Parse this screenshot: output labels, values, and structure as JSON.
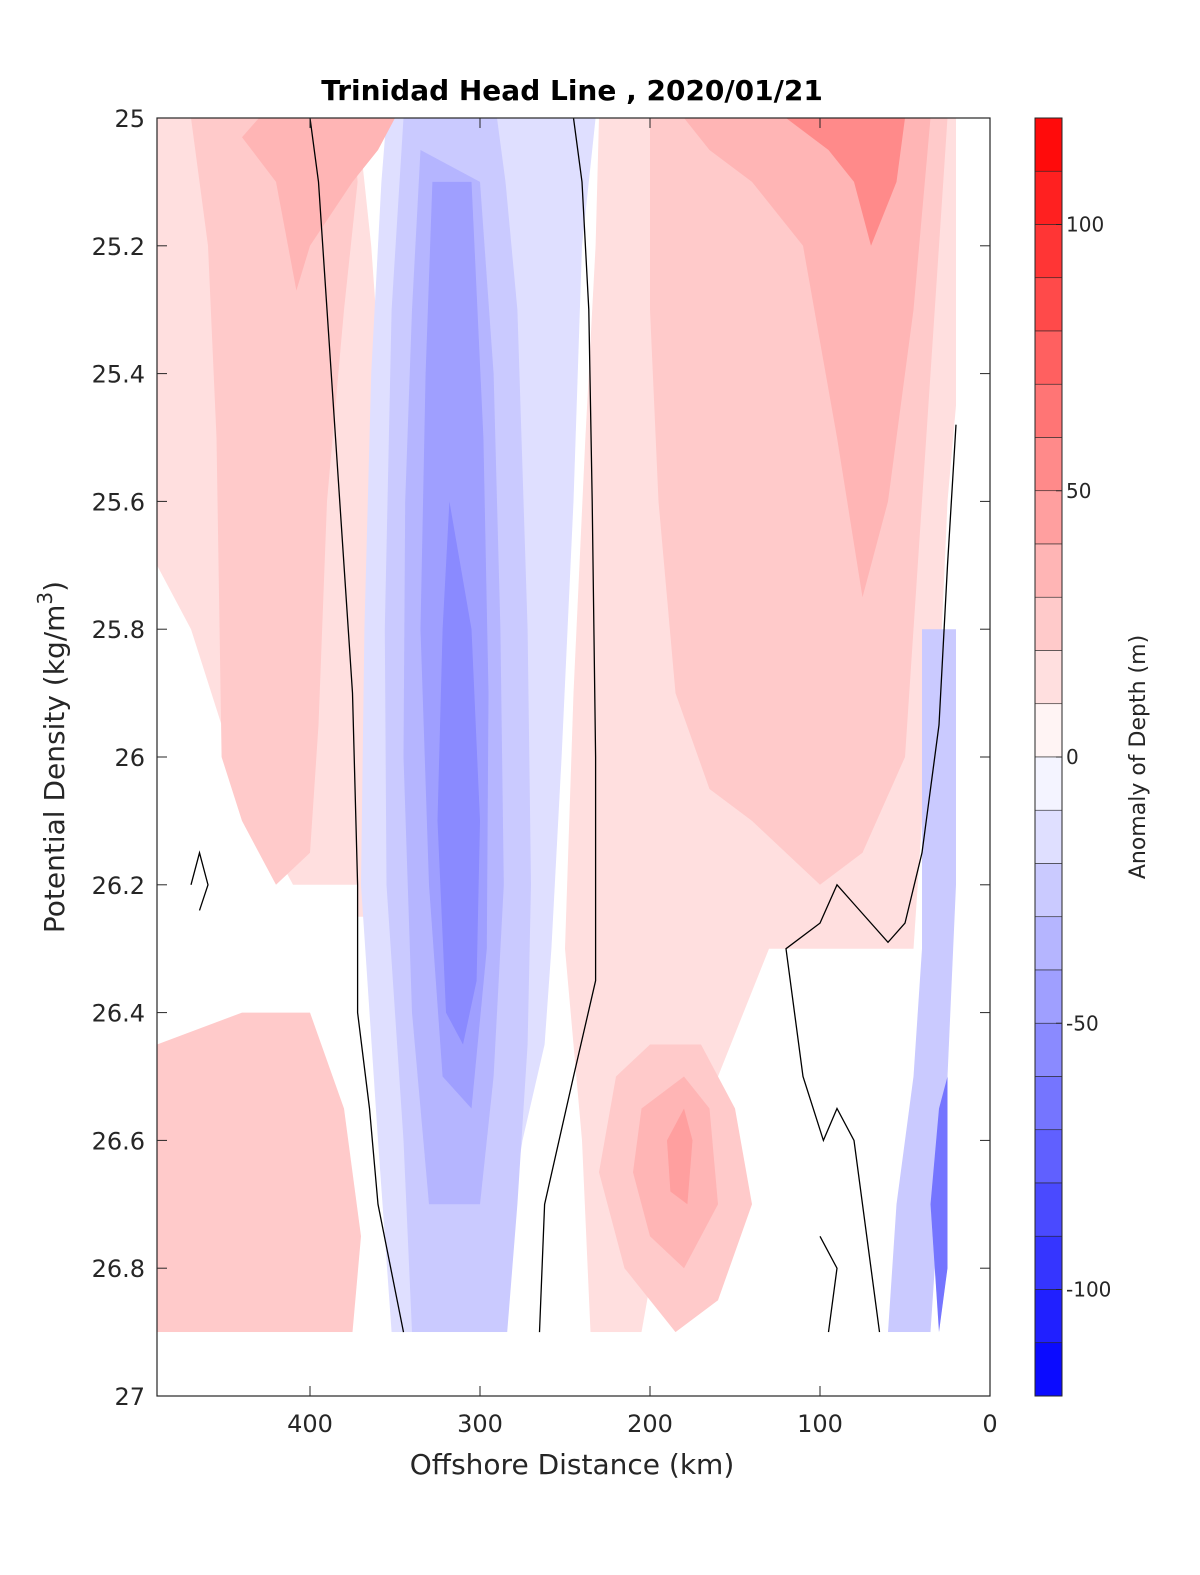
{
  "chart_data": {
    "type": "heatmap",
    "subtype": "filled-contour",
    "title": "Trinidad Head Line , 2020/01/21",
    "xlabel": "Offshore Distance (km)",
    "ylabel": "Potential Density (kg/m",
    "ylabel_sup": "3",
    "ylabel_close": ")",
    "xlim": [
      490,
      0
    ],
    "ylim": [
      25,
      27
    ],
    "x_reversed": true,
    "y_reversed": true,
    "grid": false,
    "xticks": [
      {
        "value": 400,
        "label": "400"
      },
      {
        "value": 300,
        "label": "300"
      },
      {
        "value": 200,
        "label": "200"
      },
      {
        "value": 100,
        "label": "100"
      },
      {
        "value": 0,
        "label": "0"
      }
    ],
    "yticks": [
      {
        "value": 25,
        "label": "25"
      },
      {
        "value": 25.2,
        "label": "25.2"
      },
      {
        "value": 25.4,
        "label": "25.4"
      },
      {
        "value": 25.6,
        "label": "25.6"
      },
      {
        "value": 25.8,
        "label": "25.8"
      },
      {
        "value": 26,
        "label": "26"
      },
      {
        "value": 26.2,
        "label": "26.2"
      },
      {
        "value": 26.4,
        "label": "26.4"
      },
      {
        "value": 26.6,
        "label": "26.6"
      },
      {
        "value": 26.8,
        "label": "26.8"
      },
      {
        "value": 27,
        "label": "27"
      }
    ],
    "colorbar": {
      "label": "Anomaly of Depth (m)",
      "range": [
        -120,
        120
      ],
      "level_step": 10,
      "ticks": [
        {
          "value": 100,
          "label": "100"
        },
        {
          "value": 50,
          "label": "50"
        },
        {
          "value": 0,
          "label": "0"
        },
        {
          "value": -50,
          "label": "-50"
        },
        {
          "value": -100,
          "label": "-100"
        }
      ],
      "colormap": "blue-white-red",
      "negative_color": "#0000ff",
      "positive_color": "#ff0000",
      "zero_color": "#ffffff"
    },
    "data_extent": {
      "x_min": 20,
      "x_max": 490,
      "y_min": 25,
      "y_max": 26.9
    },
    "regions": [
      {
        "name": "offshore-pos-upper",
        "level": 10,
        "points": [
          [
            490,
            25
          ],
          [
            372,
            25
          ],
          [
            364,
            25.2
          ],
          [
            356,
            25.5
          ],
          [
            350,
            25.9
          ],
          [
            350,
            26.25
          ],
          [
            372,
            26.25
          ],
          [
            372,
            26.2
          ],
          [
            380,
            25.8
          ],
          [
            390,
            25.4
          ],
          [
            396,
            25.1
          ],
          [
            400,
            25
          ],
          [
            490,
            25
          ],
          [
            490,
            26.25
          ]
        ]
      },
      {
        "name": "offshore-pos-upper-core",
        "level": 10,
        "points": [
          [
            490,
            25
          ],
          [
            380,
            25
          ],
          [
            366,
            25.3
          ],
          [
            360,
            25.7
          ],
          [
            355,
            26
          ],
          [
            350,
            26.2
          ],
          [
            410,
            26.2
          ],
          [
            440,
            26.05
          ],
          [
            470,
            25.8
          ],
          [
            490,
            25.7
          ]
        ]
      },
      {
        "name": "offshore-pos-20",
        "level": 20,
        "points": [
          [
            490,
            25
          ],
          [
            470,
            25
          ],
          [
            465,
            25.1
          ],
          [
            460,
            25.2
          ],
          [
            455,
            25.5
          ],
          [
            452,
            26
          ],
          [
            440,
            26.1
          ],
          [
            420,
            26.2
          ],
          [
            400,
            26.15
          ],
          [
            395,
            25.95
          ],
          [
            390,
            25.6
          ],
          [
            380,
            25.3
          ],
          [
            372,
            25.1
          ],
          [
            375,
            25
          ],
          [
            490,
            25
          ]
        ]
      },
      {
        "name": "offshore-pos-30",
        "level": 30,
        "points": [
          [
            430,
            25
          ],
          [
            350,
            25
          ],
          [
            360,
            25.05
          ],
          [
            375,
            25.1
          ],
          [
            400,
            25.2
          ],
          [
            408,
            25.27
          ],
          [
            420,
            25.1
          ],
          [
            440,
            25.03
          ]
        ]
      },
      {
        "name": "offshore-neg-10-band",
        "level": -10,
        "points": [
          [
            355,
            25
          ],
          [
            232,
            25
          ],
          [
            240,
            25.2
          ],
          [
            245,
            25.6
          ],
          [
            252,
            26
          ],
          [
            258,
            26.3
          ],
          [
            262,
            26.45
          ],
          [
            275,
            26.6
          ],
          [
            284,
            26.75
          ],
          [
            288,
            26.9
          ],
          [
            352,
            26.9
          ],
          [
            360,
            26.6
          ],
          [
            370,
            26.2
          ],
          [
            368,
            25.8
          ],
          [
            364,
            25.4
          ],
          [
            358,
            25.1
          ]
        ]
      },
      {
        "name": "offshore-neg-20-band",
        "level": -20,
        "points": [
          [
            345,
            25
          ],
          [
            290,
            25
          ],
          [
            285,
            25.1
          ],
          [
            278,
            25.3
          ],
          [
            272,
            25.8
          ],
          [
            270,
            26.2
          ],
          [
            272,
            26.45
          ],
          [
            278,
            26.7
          ],
          [
            284,
            26.9
          ],
          [
            340,
            26.9
          ],
          [
            345,
            26.6
          ],
          [
            355,
            26.2
          ],
          [
            356,
            25.8
          ],
          [
            352,
            25.3
          ]
        ]
      },
      {
        "name": "offshore-neg-30-band",
        "level": -30,
        "points": [
          [
            335,
            25.05
          ],
          [
            300,
            25.1
          ],
          [
            292,
            25.4
          ],
          [
            288,
            25.8
          ],
          [
            286,
            26.2
          ],
          [
            292,
            26.5
          ],
          [
            300,
            26.7
          ],
          [
            330,
            26.7
          ],
          [
            340,
            26.4
          ],
          [
            345,
            26
          ],
          [
            344,
            25.6
          ],
          [
            340,
            25.3
          ]
        ]
      },
      {
        "name": "offshore-neg-40-core",
        "level": -40,
        "points": [
          [
            328,
            25.1
          ],
          [
            305,
            25.1
          ],
          [
            298,
            25.5
          ],
          [
            295,
            25.9
          ],
          [
            296,
            26.3
          ],
          [
            305,
            26.55
          ],
          [
            322,
            26.5
          ],
          [
            330,
            26.2
          ],
          [
            335,
            25.8
          ],
          [
            332,
            25.4
          ]
        ]
      },
      {
        "name": "offshore-neg-50-core",
        "level": -50,
        "points": [
          [
            318,
            25.6
          ],
          [
            305,
            25.8
          ],
          [
            300,
            26.1
          ],
          [
            302,
            26.35
          ],
          [
            310,
            26.45
          ],
          [
            320,
            26.4
          ],
          [
            325,
            26.1
          ],
          [
            322,
            25.8
          ]
        ]
      },
      {
        "name": "inshore-pos-10-band",
        "level": 10,
        "points": [
          [
            230,
            25
          ],
          [
            20,
            25
          ],
          [
            20,
            25.45
          ],
          [
            25,
            25.6
          ],
          [
            30,
            25.9
          ],
          [
            40,
            26.1
          ],
          [
            45,
            26.3
          ],
          [
            130,
            26.3
          ],
          [
            175,
            26.6
          ],
          [
            195,
            26.75
          ],
          [
            205,
            26.9
          ],
          [
            235,
            26.9
          ],
          [
            240,
            26.6
          ],
          [
            250,
            26.3
          ],
          [
            245,
            25.9
          ],
          [
            238,
            25.5
          ],
          [
            232,
            25.2
          ]
        ]
      },
      {
        "name": "inshore-pos-20-band",
        "level": 20,
        "points": [
          [
            200,
            25
          ],
          [
            25,
            25
          ],
          [
            30,
            25.2
          ],
          [
            40,
            25.6
          ],
          [
            50,
            26
          ],
          [
            75,
            26.15
          ],
          [
            100,
            26.2
          ],
          [
            140,
            26.1
          ],
          [
            165,
            26.05
          ],
          [
            185,
            25.9
          ],
          [
            195,
            25.6
          ],
          [
            200,
            25.3
          ]
        ]
      },
      {
        "name": "inshore-pos-30-band",
        "level": 30,
        "points": [
          [
            180,
            25
          ],
          [
            35,
            25
          ],
          [
            45,
            25.3
          ],
          [
            60,
            25.6
          ],
          [
            75,
            25.75
          ],
          [
            90,
            25.5
          ],
          [
            110,
            25.2
          ],
          [
            140,
            25.1
          ],
          [
            165,
            25.05
          ]
        ]
      },
      {
        "name": "inshore-pos-50-core",
        "level": 50,
        "points": [
          [
            120,
            25
          ],
          [
            50,
            25
          ],
          [
            55,
            25.1
          ],
          [
            70,
            25.2
          ],
          [
            80,
            25.1
          ],
          [
            95,
            25.05
          ]
        ]
      },
      {
        "name": "inshore-pos-20-lower",
        "level": 20,
        "points": [
          [
            220,
            26.5
          ],
          [
            200,
            26.45
          ],
          [
            170,
            26.45
          ],
          [
            150,
            26.55
          ],
          [
            140,
            26.7
          ],
          [
            160,
            26.85
          ],
          [
            185,
            26.9
          ],
          [
            215,
            26.8
          ],
          [
            230,
            26.65
          ]
        ]
      },
      {
        "name": "inshore-pos-30-lower",
        "level": 30,
        "points": [
          [
            205,
            26.55
          ],
          [
            180,
            26.5
          ],
          [
            165,
            26.55
          ],
          [
            160,
            26.7
          ],
          [
            180,
            26.8
          ],
          [
            200,
            26.75
          ],
          [
            210,
            26.65
          ]
        ]
      },
      {
        "name": "inshore-pos-40-core",
        "level": 40,
        "points": [
          [
            190,
            26.6
          ],
          [
            180,
            26.55
          ],
          [
            175,
            26.6
          ],
          [
            178,
            26.7
          ],
          [
            188,
            26.68
          ]
        ]
      },
      {
        "name": "coastal-neg-band",
        "level": -20,
        "points": [
          [
            40,
            25.8
          ],
          [
            20,
            25.8
          ],
          [
            20,
            26.2
          ],
          [
            25,
            26.5
          ],
          [
            30,
            26.7
          ],
          [
            35,
            26.9
          ],
          [
            60,
            26.9
          ],
          [
            55,
            26.7
          ],
          [
            45,
            26.5
          ],
          [
            40,
            26.3
          ]
        ]
      },
      {
        "name": "coastal-neg-core",
        "level": -60,
        "points": [
          [
            30,
            26.55
          ],
          [
            25,
            26.5
          ],
          [
            25,
            26.8
          ],
          [
            30,
            26.9
          ],
          [
            35,
            26.7
          ]
        ]
      },
      {
        "name": "offshore-pos-lower",
        "level": 20,
        "points": [
          [
            490,
            26.45
          ],
          [
            440,
            26.4
          ],
          [
            400,
            26.4
          ],
          [
            380,
            26.55
          ],
          [
            370,
            26.75
          ],
          [
            375,
            26.9
          ],
          [
            490,
            26.9
          ]
        ]
      }
    ],
    "contours_zero": [
      {
        "name": "zero-offshore-west",
        "points": [
          [
            400,
            25
          ],
          [
            395,
            25.1
          ],
          [
            385,
            25.5
          ],
          [
            375,
            25.9
          ],
          [
            372,
            26.2
          ],
          [
            372,
            26.4
          ],
          [
            365,
            26.55
          ],
          [
            360,
            26.7
          ],
          [
            345,
            26.9
          ]
        ]
      },
      {
        "name": "zero-offshore-east",
        "points": [
          [
            245,
            25
          ],
          [
            240,
            25.1
          ],
          [
            236,
            25.3
          ],
          [
            234,
            25.6
          ],
          [
            232,
            26
          ],
          [
            232,
            26.35
          ],
          [
            245,
            26.5
          ],
          [
            262,
            26.7
          ],
          [
            265,
            26.9
          ]
        ]
      },
      {
        "name": "zero-coastal",
        "points": [
          [
            20,
            25.48
          ],
          [
            25,
            25.7
          ],
          [
            30,
            25.95
          ],
          [
            40,
            26.15
          ],
          [
            50,
            26.26
          ],
          [
            60,
            26.29
          ],
          [
            80,
            26.23
          ],
          [
            90,
            26.2
          ],
          [
            100,
            26.26
          ],
          [
            120,
            26.3
          ],
          [
            110,
            26.5
          ],
          [
            98,
            26.6
          ],
          [
            90,
            26.55
          ],
          [
            80,
            26.6
          ],
          [
            65,
            26.9
          ]
        ]
      },
      {
        "name": "zero-small-west",
        "points": [
          [
            470,
            26.2
          ],
          [
            465,
            26.15
          ],
          [
            460,
            26.2
          ],
          [
            465,
            26.24
          ]
        ]
      },
      {
        "name": "zero-small-east",
        "points": [
          [
            100,
            26.75
          ],
          [
            90,
            26.8
          ],
          [
            95,
            26.9
          ]
        ]
      }
    ]
  }
}
